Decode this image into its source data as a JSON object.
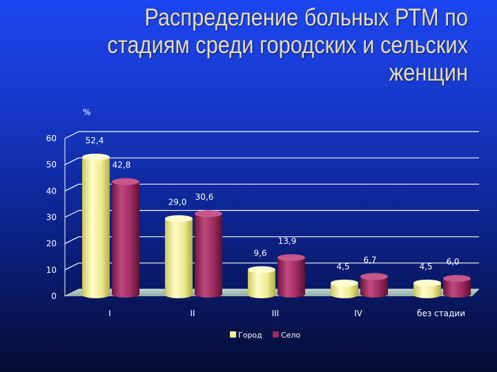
{
  "slide": {
    "title": "Распределение больных РТМ по стадиям среди городских и сельских женщин"
  },
  "chart_data": {
    "type": "bar",
    "style": "3d-cylinder",
    "unit_label": "%",
    "categories": [
      "I",
      "II",
      "III",
      "IV",
      "без стадии"
    ],
    "series": [
      {
        "name": "Город",
        "values": [
          52.4,
          29.0,
          9.6,
          4.5,
          4.5
        ],
        "labels": [
          "52,4",
          "29,0",
          "9,6",
          "4,5",
          "4,5"
        ],
        "color": "#f2ee9a"
      },
      {
        "name": "Село",
        "values": [
          42.8,
          30.6,
          13.9,
          6.7,
          6.0
        ],
        "labels": [
          "42,8",
          "30,6",
          "13,9",
          "6,7",
          "6,0"
        ],
        "color": "#9e2a60"
      }
    ],
    "yticks": [
      "0",
      "10",
      "20",
      "30",
      "40",
      "50",
      "60"
    ],
    "ylim": [
      0,
      60
    ],
    "grid": true,
    "legend_position": "bottom"
  }
}
